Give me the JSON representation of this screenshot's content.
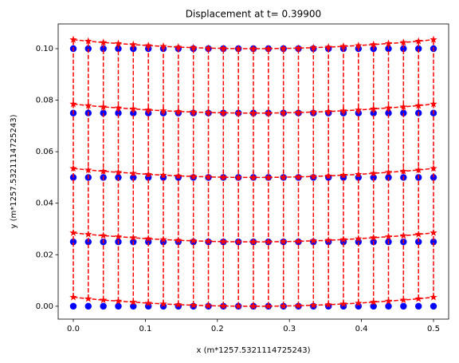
{
  "chart_data": {
    "type": "scatter",
    "title": "Displacement at t=  0.39900",
    "xlabel": "x (m*1257.5321114725243)",
    "ylabel": "y (m*1257.5321114725243)",
    "x": [
      0,
      0.0208,
      0.0417,
      0.0625,
      0.0833,
      0.1042,
      0.125,
      0.1458,
      0.1667,
      0.1875,
      0.2083,
      0.2292,
      0.25,
      0.2708,
      0.2917,
      0.3125,
      0.3333,
      0.3542,
      0.375,
      0.3958,
      0.4167,
      0.4375,
      0.4583,
      0.4792,
      0.5
    ],
    "xlim": [
      -0.021,
      0.521
    ],
    "ylim": [
      -0.005,
      0.1096
    ],
    "xticks": [
      {
        "value": 0,
        "label": "0.0"
      },
      0.1,
      0.2,
      0.3,
      0.4,
      0.5
    ],
    "yticks": [
      {
        "value": 0,
        "label": "0.00"
      },
      {
        "value": 0.02,
        "label": "0.02"
      },
      {
        "value": 0.04,
        "label": "0.04"
      },
      {
        "value": 0.06,
        "label": "0.06"
      },
      {
        "value": 0.08,
        "label": "0.08"
      },
      {
        "value": 0.1,
        "label": "0.10"
      }
    ],
    "series": [
      {
        "color": "#0000ff",
        "marker": "circle",
        "values": [
          0,
          0,
          0,
          0,
          0,
          0,
          0,
          0,
          0,
          0,
          0,
          0,
          0,
          0,
          0,
          0,
          0,
          0,
          0,
          0,
          0,
          0,
          0,
          0,
          0
        ]
      },
      {
        "color": "#0000ff",
        "marker": "circle",
        "values": [
          0.025,
          0.025,
          0.025,
          0.025,
          0.025,
          0.025,
          0.025,
          0.025,
          0.025,
          0.025,
          0.025,
          0.025,
          0.025,
          0.025,
          0.025,
          0.025,
          0.025,
          0.025,
          0.025,
          0.025,
          0.025,
          0.025,
          0.025,
          0.025,
          0.025
        ]
      },
      {
        "color": "#0000ff",
        "marker": "circle",
        "values": [
          0.05,
          0.05,
          0.05,
          0.05,
          0.05,
          0.05,
          0.05,
          0.05,
          0.05,
          0.05,
          0.05,
          0.05,
          0.05,
          0.05,
          0.05,
          0.05,
          0.05,
          0.05,
          0.05,
          0.05,
          0.05,
          0.05,
          0.05,
          0.05,
          0.05
        ]
      },
      {
        "color": "#0000ff",
        "marker": "circle",
        "values": [
          0.075,
          0.075,
          0.075,
          0.075,
          0.075,
          0.075,
          0.075,
          0.075,
          0.075,
          0.075,
          0.075,
          0.075,
          0.075,
          0.075,
          0.075,
          0.075,
          0.075,
          0.075,
          0.075,
          0.075,
          0.075,
          0.075,
          0.075,
          0.075,
          0.075
        ]
      },
      {
        "color": "#0000ff",
        "marker": "circle",
        "values": [
          0.1,
          0.1,
          0.1,
          0.1,
          0.1,
          0.1,
          0.1,
          0.1,
          0.1,
          0.1,
          0.1,
          0.1,
          0.1,
          0.1,
          0.1,
          0.1,
          0.1,
          0.1,
          0.1,
          0.1,
          0.1,
          0.1,
          0.1,
          0.1,
          0.1
        ]
      },
      {
        "color": "#ff0000",
        "marker": "star",
        "line": "dashed",
        "values": [
          0.0035,
          0.0029,
          0.0024,
          0.002,
          0.0016,
          0.0012,
          0.0009,
          0.0006,
          0.0004,
          0.0002,
          0.0001,
          0,
          0,
          0,
          0.0001,
          0.0002,
          0.0004,
          0.0006,
          0.0009,
          0.0012,
          0.0016,
          0.002,
          0.0024,
          0.0029,
          0.0035
        ]
      },
      {
        "color": "#ff0000",
        "marker": "star",
        "line": "dashed",
        "values": [
          0.0285,
          0.0279,
          0.0274,
          0.027,
          0.0266,
          0.0262,
          0.0259,
          0.0256,
          0.0254,
          0.0252,
          0.0251,
          0.025,
          0.025,
          0.025,
          0.0251,
          0.0252,
          0.0254,
          0.0256,
          0.0259,
          0.0262,
          0.0266,
          0.027,
          0.0274,
          0.0279,
          0.0285
        ]
      },
      {
        "color": "#ff0000",
        "marker": "star",
        "line": "dashed",
        "values": [
          0.0535,
          0.0529,
          0.0524,
          0.052,
          0.0516,
          0.0512,
          0.0509,
          0.0506,
          0.0504,
          0.0502,
          0.0501,
          0.05,
          0.05,
          0.05,
          0.0501,
          0.0502,
          0.0504,
          0.0506,
          0.0509,
          0.0512,
          0.0516,
          0.052,
          0.0524,
          0.0529,
          0.0535
        ]
      },
      {
        "color": "#ff0000",
        "marker": "star",
        "line": "dashed",
        "values": [
          0.0785,
          0.0779,
          0.0774,
          0.077,
          0.0766,
          0.0762,
          0.0759,
          0.0756,
          0.0754,
          0.0752,
          0.0751,
          0.075,
          0.075,
          0.075,
          0.0751,
          0.0752,
          0.0754,
          0.0756,
          0.0759,
          0.0762,
          0.0766,
          0.077,
          0.0774,
          0.0779,
          0.0785
        ]
      },
      {
        "color": "#ff0000",
        "marker": "star",
        "line": "dashed",
        "values": [
          0.1035,
          0.1029,
          0.1024,
          0.102,
          0.1016,
          0.1012,
          0.1009,
          0.1006,
          0.1004,
          0.1002,
          0.1001,
          0.1,
          0.1,
          0.1,
          0.1001,
          0.1002,
          0.1004,
          0.1006,
          0.1009,
          0.1012,
          0.1016,
          0.102,
          0.1024,
          0.1029,
          0.1035
        ]
      }
    ]
  }
}
